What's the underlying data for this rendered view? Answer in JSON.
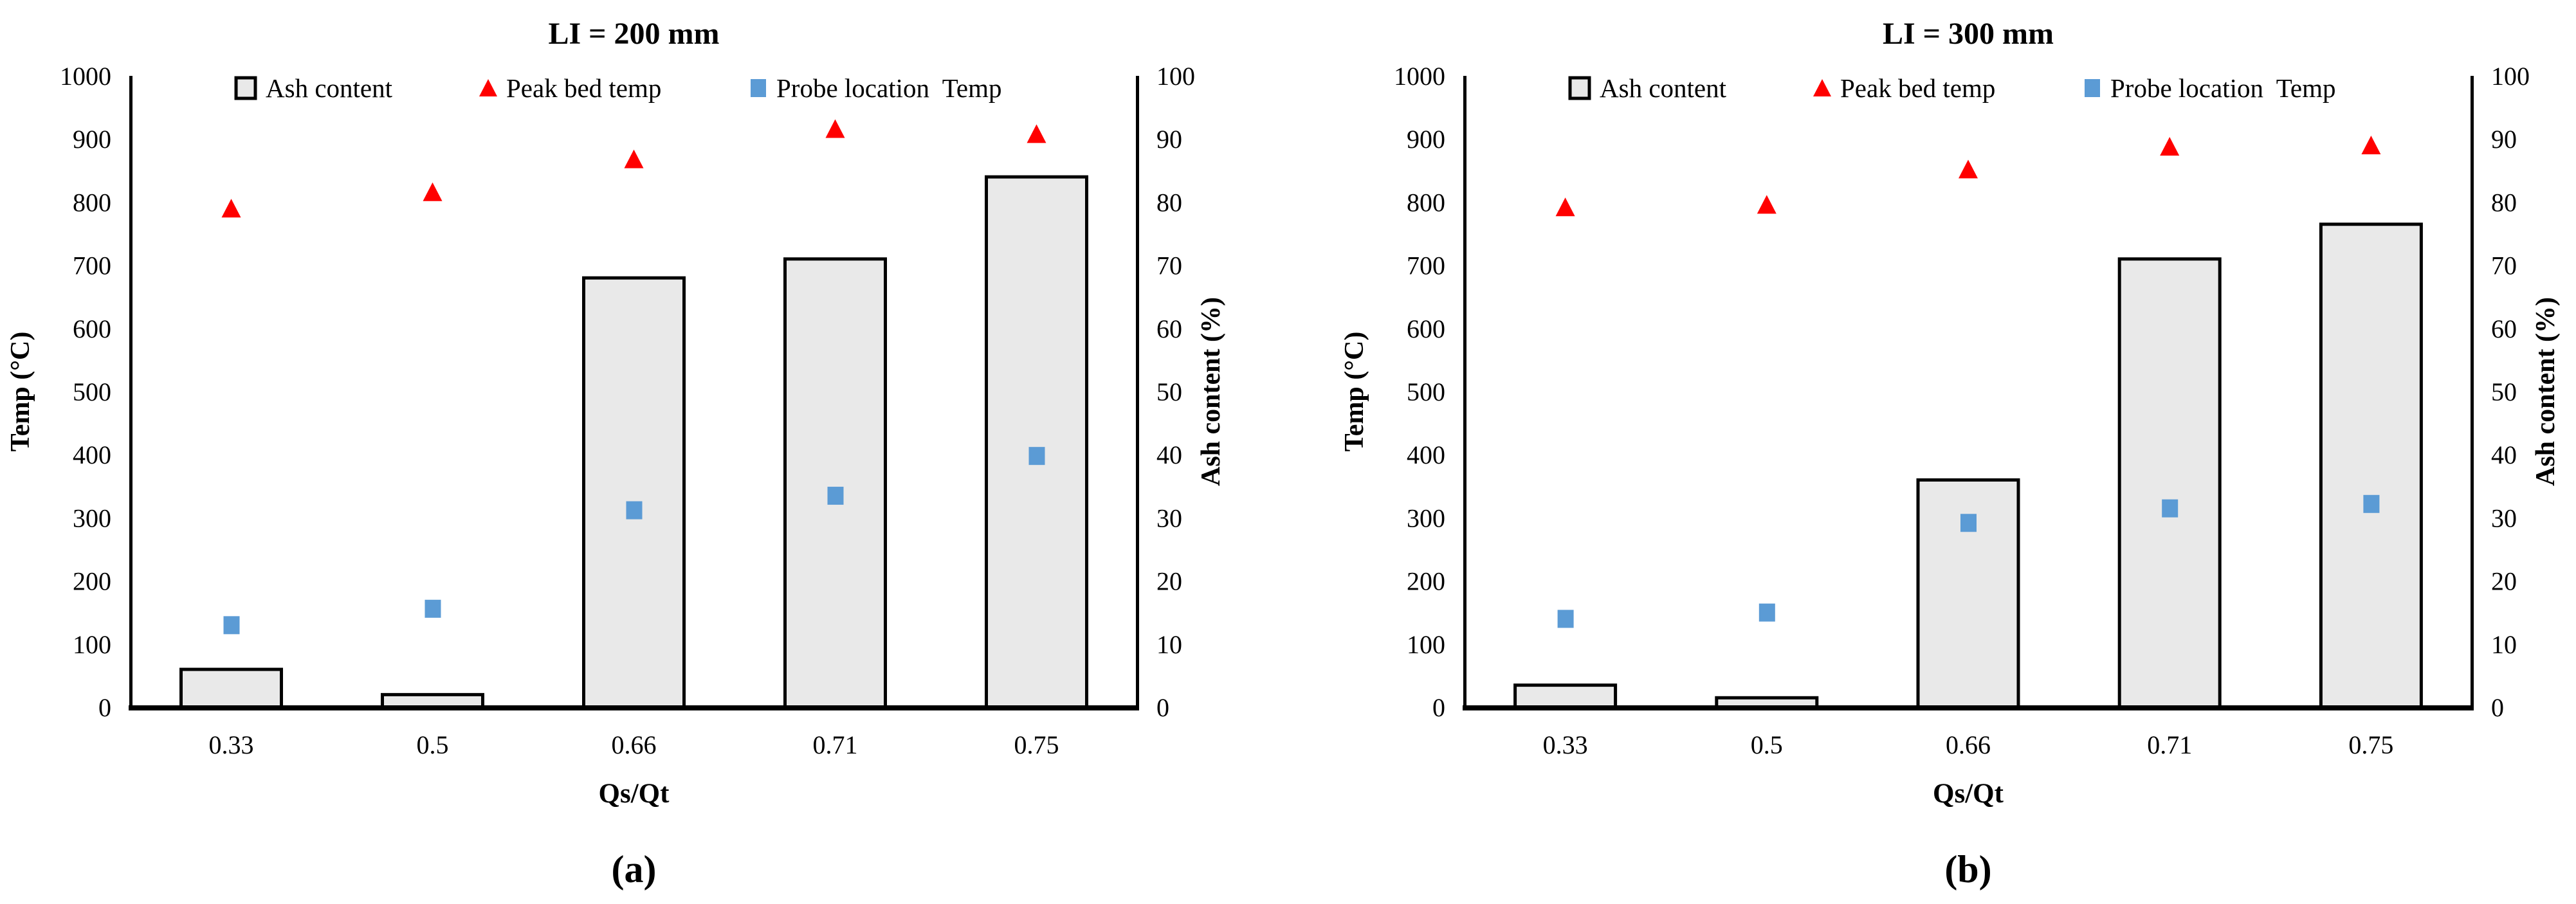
{
  "page": {
    "background": "#ffffff"
  },
  "colors": {
    "bar_fill": "#E9E9E9",
    "bar_border": "#000000",
    "triangle_marker": "#FF0000",
    "square_marker": "#5B9BD5",
    "axis_line": "#000000",
    "text": "#000000"
  },
  "chart_data": [
    {
      "type": "bar",
      "subtype": "combo-bar-scatter-dual-axis",
      "panel_label": "(a)",
      "title": "LI = 200 mm",
      "xlabel": "Qs/Qt",
      "ylabel_left": "Temp (°C)",
      "ylabel_right": "Ash content (%)",
      "categories": [
        "0.33",
        "0.5",
        "0.66",
        "0.71",
        "0.75"
      ],
      "axes": {
        "left_min": 0,
        "left_max": 1000,
        "left_step": 100,
        "right_min": 0,
        "right_max": 100,
        "right_step": 10,
        "grid": false
      },
      "legend": {
        "position": "top-inside",
        "entries": [
          {
            "label": "Ash content",
            "marker": "bar-swatch"
          },
          {
            "label": "Peak bed temp",
            "marker": "triangle"
          },
          {
            "label": "Probe location  Temp",
            "marker": "square"
          }
        ]
      },
      "series": [
        {
          "name": "Ash content",
          "render": "bar",
          "axis": "right",
          "unit": "%",
          "values": [
            6,
            2,
            68,
            71,
            84
          ]
        },
        {
          "name": "Peak bed temp",
          "render": "scatter-triangle",
          "axis": "left",
          "unit": "°C",
          "values": [
            790,
            816,
            868,
            916,
            908
          ]
        },
        {
          "name": "Probe location Temp",
          "render": "scatter-square",
          "axis": "left",
          "unit": "°C",
          "values": [
            130,
            156,
            312,
            335,
            398
          ]
        }
      ]
    },
    {
      "type": "bar",
      "subtype": "combo-bar-scatter-dual-axis",
      "panel_label": "(b)",
      "title": "LI = 300 mm",
      "xlabel": "Qs/Qt",
      "ylabel_left": "Temp (°C)",
      "ylabel_right": "Ash content (%)",
      "categories": [
        "0.33",
        "0.5",
        "0.66",
        "0.71",
        "0.75"
      ],
      "axes": {
        "left_min": 0,
        "left_max": 1000,
        "left_step": 100,
        "right_min": 0,
        "right_max": 100,
        "right_step": 10,
        "grid": false
      },
      "legend": {
        "position": "top-inside",
        "entries": [
          {
            "label": "Ash content",
            "marker": "bar-swatch"
          },
          {
            "label": "Peak bed temp",
            "marker": "triangle"
          },
          {
            "label": "Probe location  Temp",
            "marker": "square"
          }
        ]
      },
      "series": [
        {
          "name": "Ash content",
          "render": "bar",
          "axis": "right",
          "unit": "%",
          "values": [
            3.5,
            1.5,
            36,
            71,
            76.5
          ]
        },
        {
          "name": "Peak bed temp",
          "render": "scatter-triangle",
          "axis": "left",
          "unit": "°C",
          "values": [
            792,
            796,
            852,
            888,
            890
          ]
        },
        {
          "name": "Probe location Temp",
          "render": "scatter-square",
          "axis": "left",
          "unit": "°C",
          "values": [
            140,
            150,
            292,
            315,
            322
          ]
        }
      ]
    }
  ]
}
